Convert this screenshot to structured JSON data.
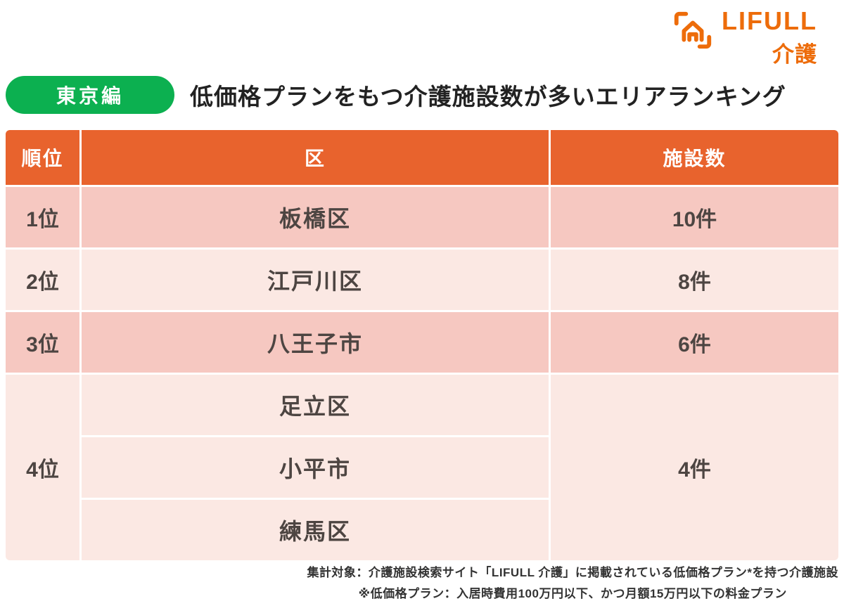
{
  "logo": {
    "brand": "LIFULL",
    "sub": "介護"
  },
  "header": {
    "badge": "東京編",
    "title": "低価格プランをもつ介護施設数が多いエリアランキング"
  },
  "table": {
    "columns": [
      "順位",
      "区",
      "施設数"
    ],
    "rows": [
      {
        "rank": "1位",
        "wards": [
          "板橋区"
        ],
        "count": "10件"
      },
      {
        "rank": "2位",
        "wards": [
          "江戸川区"
        ],
        "count": "8件"
      },
      {
        "rank": "3位",
        "wards": [
          "八王子市"
        ],
        "count": "6件"
      },
      {
        "rank": "4位",
        "wards": [
          "足立区",
          "小平市",
          "練馬区"
        ],
        "count": "4件"
      }
    ]
  },
  "footnote": {
    "line1": "集計対象：介護施設検索サイト「LIFULL 介護」に掲載されている低価格プラン*を持つ介護施設",
    "line2": "※低価格プラン：入居時費用100万円以下、かつ月額15万円以下の料金プラン"
  },
  "colors": {
    "accent_orange": "#E8632D",
    "logo_orange": "#ED6C0A",
    "badge_green": "#0CB050",
    "row_pink_dark": "#F6C8C1",
    "row_pink_light": "#FBE8E3",
    "text_dark": "#4D4542"
  },
  "chart_data": {
    "type": "table",
    "title": "低価格プランをもつ介護施設数が多いエリアランキング",
    "columns": [
      "順位",
      "区",
      "施設数"
    ],
    "rows": [
      [
        "1位",
        "板橋区",
        10
      ],
      [
        "2位",
        "江戸川区",
        8
      ],
      [
        "3位",
        "八王子市",
        6
      ],
      [
        "4位",
        "足立区",
        4
      ],
      [
        "4位",
        "小平市",
        4
      ],
      [
        "4位",
        "練馬区",
        4
      ]
    ],
    "unit": "件"
  }
}
